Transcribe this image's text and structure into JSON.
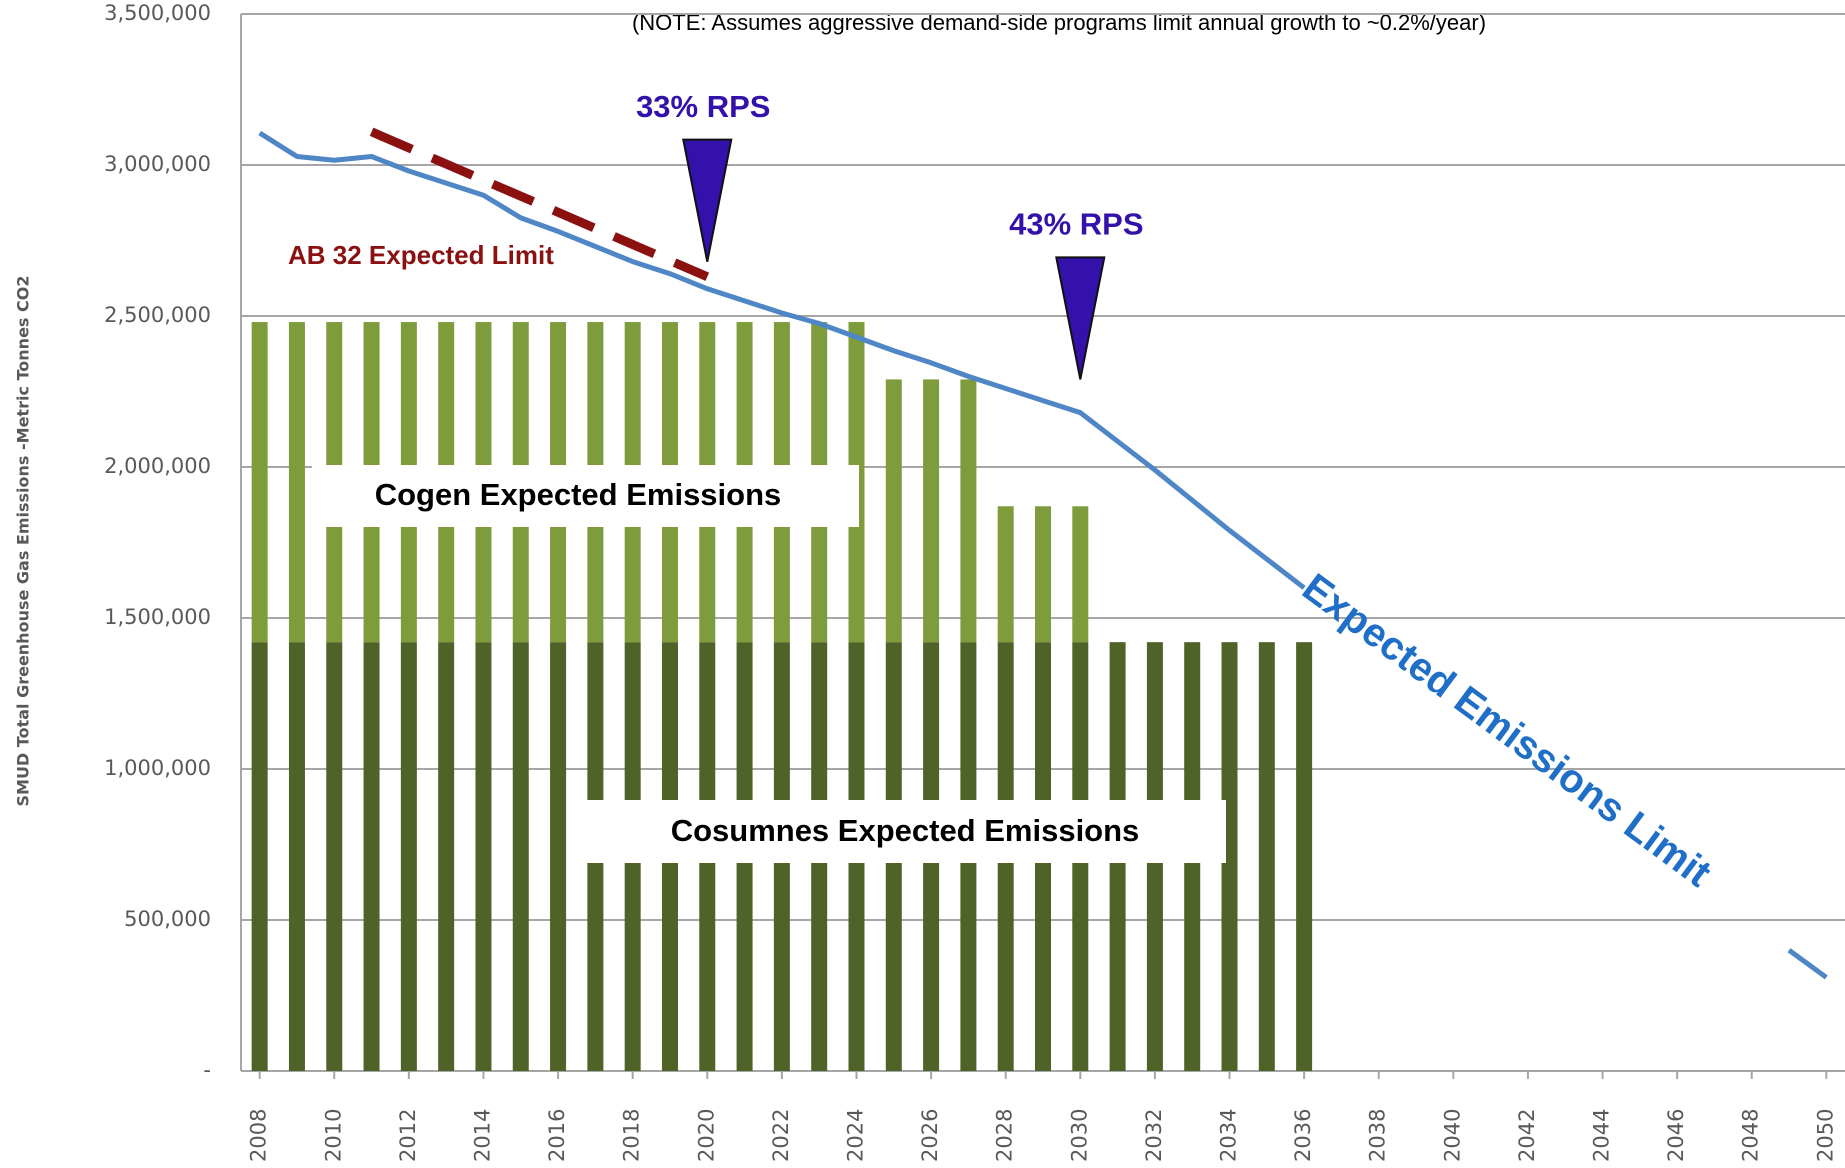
{
  "chart_data": {
    "type": "bar",
    "stacked": true,
    "note": "(NOTE: Assumes aggressive demand-side programs limit annual growth to ~0.2%/year)",
    "y_label": "SMUD Total Greenhouse Gas Emissions -Metric Tonnes CO2",
    "x": [
      2008,
      2009,
      2010,
      2011,
      2012,
      2013,
      2014,
      2015,
      2016,
      2017,
      2018,
      2019,
      2020,
      2021,
      2022,
      2023,
      2024,
      2025,
      2026,
      2027,
      2028,
      2029,
      2030,
      2031,
      2032,
      2033,
      2034,
      2035,
      2036,
      2037,
      2038,
      2039,
      2040,
      2041,
      2042,
      2043,
      2044,
      2045,
      2046,
      2047,
      2048,
      2049,
      2050
    ],
    "xlim": [
      2007.5,
      2050.5
    ],
    "xticks": [
      2008,
      2010,
      2012,
      2014,
      2016,
      2018,
      2020,
      2022,
      2024,
      2026,
      2028,
      2030,
      2032,
      2034,
      2036,
      2038,
      2040,
      2042,
      2044,
      2046,
      2048,
      2050
    ],
    "ylim": [
      0,
      3500000
    ],
    "yticks": [
      {
        "value": 0,
        "label": "-"
      },
      {
        "value": 500000,
        "label": "500,000"
      },
      {
        "value": 1000000,
        "label": "1,000,000"
      },
      {
        "value": 1500000,
        "label": "1,500,000"
      },
      {
        "value": 2000000,
        "label": "2,000,000"
      },
      {
        "value": 2500000,
        "label": "2,500,000"
      },
      {
        "value": 3000000,
        "label": "3,000,000"
      },
      {
        "value": 3500000,
        "label": "3,500,000"
      }
    ],
    "grid": true,
    "series": [
      {
        "name": "Cosumnes Expected Emissions",
        "type": "bar",
        "color": "#4f6228",
        "values": [
          1420000,
          1420000,
          1420000,
          1420000,
          1420000,
          1420000,
          1420000,
          1420000,
          1420000,
          1420000,
          1420000,
          1420000,
          1420000,
          1420000,
          1420000,
          1420000,
          1420000,
          1420000,
          1420000,
          1420000,
          1420000,
          1420000,
          1420000,
          1420000,
          1420000,
          1420000,
          1420000,
          1420000,
          1420000,
          null,
          null,
          null,
          null,
          null,
          null,
          null,
          null,
          null,
          null,
          null,
          null,
          null,
          null
        ]
      },
      {
        "name": "Cogen Expected Emissions",
        "type": "bar",
        "color": "#7f9c3c",
        "values": [
          1060000,
          1060000,
          1060000,
          1060000,
          1060000,
          1060000,
          1060000,
          1060000,
          1060000,
          1060000,
          1060000,
          1060000,
          1060000,
          1060000,
          1060000,
          1060000,
          1060000,
          870000,
          870000,
          870000,
          450000,
          450000,
          450000,
          null,
          null,
          null,
          null,
          null,
          null,
          null,
          null,
          null,
          null,
          null,
          null,
          null,
          null,
          null,
          null,
          null,
          null,
          null,
          null
        ]
      },
      {
        "name": "Expected Emissions Limit",
        "type": "line",
        "color": "#4f86c6",
        "values": [
          3106000,
          3028000,
          3016000,
          3028000,
          2980000,
          2940000,
          2900000,
          2825000,
          2780000,
          2730000,
          2680000,
          2640000,
          2590000,
          2550000,
          2510000,
          2475000,
          2430000,
          2385000,
          2345000,
          2300000,
          2260000,
          2220000,
          2180000,
          2085000,
          1990000,
          1890000,
          1790000,
          1695000,
          1600000,
          null,
          null,
          null,
          null,
          null,
          null,
          null,
          null,
          null,
          null,
          null,
          null,
          400000,
          310000
        ]
      },
      {
        "name": "AB 32 Expected Limit",
        "type": "line",
        "dashed": true,
        "color": "#8b1111",
        "x": [
          2011,
          2020
        ],
        "values": [
          3110000,
          2630000
        ]
      }
    ],
    "annotations": [
      {
        "text": "33% RPS",
        "x": 2020,
        "y": 2680000,
        "color": "#3311aa"
      },
      {
        "text": "43% RPS",
        "x": 2030,
        "y": 2290000,
        "color": "#3311aa"
      }
    ]
  }
}
